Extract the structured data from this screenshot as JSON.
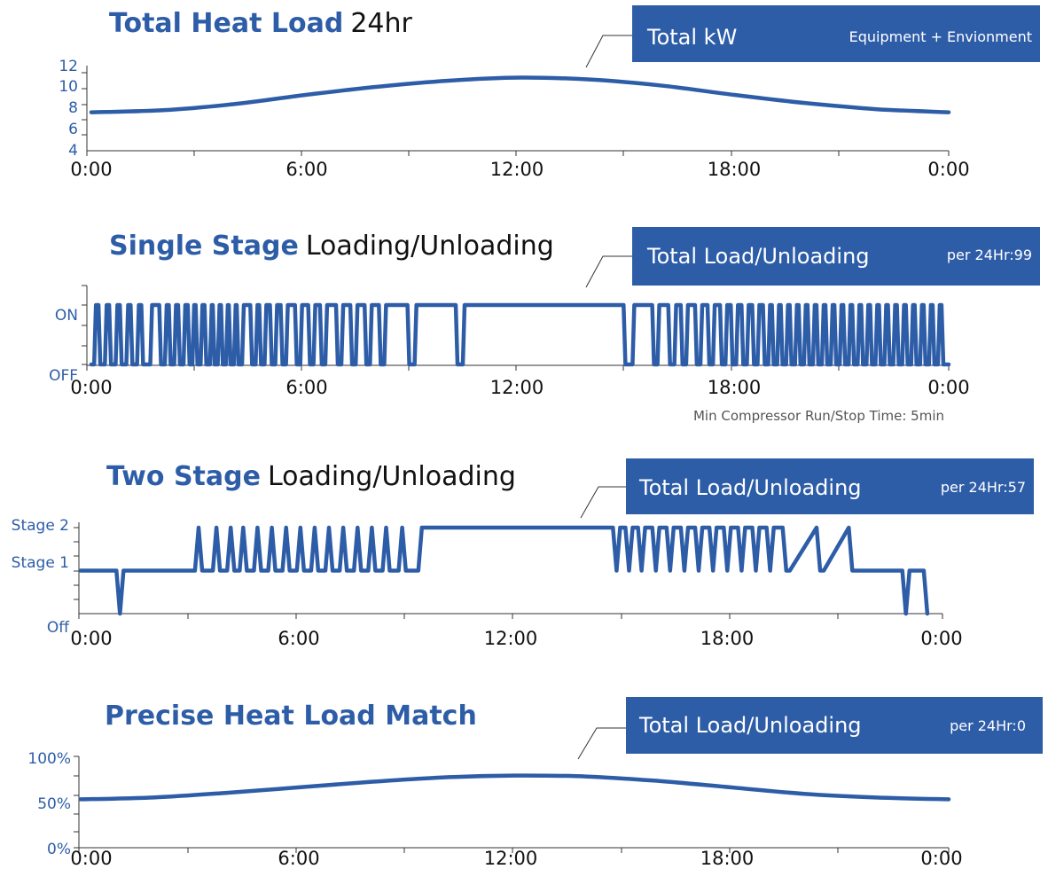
{
  "colors": {
    "accent": "#2e5da8",
    "axis": "#333333"
  },
  "charts": {
    "heat": {
      "title_bold": "Total Heat Load",
      "title_rest": "24hr",
      "callout_main": "Total kW",
      "callout_sub": "Equipment + Envionment"
    },
    "single": {
      "title_bold": "Single Stage",
      "title_rest": "Loading/Unloading",
      "callout_main": "Total Load/Unloading",
      "callout_sub": "per 24Hr:99",
      "note": "Min Compressor Run/Stop Time: 5min"
    },
    "two": {
      "title_bold": "Two Stage",
      "title_rest": "Loading/Unloading",
      "callout_main": "Total Load/Unloading",
      "callout_sub": "per 24Hr:57"
    },
    "precise": {
      "title_bold": "Precise Heat Load Match",
      "title_rest": "",
      "callout_main": "Total Load/Unloading",
      "callout_sub": "per 24Hr:0"
    }
  },
  "chart_data": [
    {
      "type": "line",
      "x_tick_labels": [
        "0:00",
        "6:00",
        "12:00",
        "18:00",
        "0:00"
      ],
      "x_range_hours": [
        0,
        24
      ],
      "y_tick_labels": [
        "12",
        "10",
        "8",
        "6",
        "4"
      ],
      "ylim": [
        4,
        12
      ],
      "series": [
        {
          "x": [
            0,
            2,
            4,
            6,
            8,
            10,
            12,
            14,
            16,
            18,
            20,
            22,
            24
          ],
          "values": [
            7.6,
            7.8,
            8.4,
            9.3,
            10.1,
            10.7,
            11.0,
            10.8,
            10.2,
            9.3,
            8.5,
            7.9,
            7.6
          ]
        }
      ]
    },
    {
      "type": "line",
      "x_tick_labels": [
        "0:00",
        "6:00",
        "12:00",
        "18:00",
        "0:00"
      ],
      "x_range_hours": [
        0,
        24
      ],
      "y_tick_labels": [
        "ON",
        "OFF"
      ],
      "ylim": [
        0,
        1
      ],
      "series": [
        {
          "on_periods_hours": [
            [
              0.08,
              0.25
            ],
            [
              0.38,
              0.55
            ],
            [
              0.68,
              0.85
            ],
            [
              0.98,
              1.15
            ],
            [
              1.28,
              1.45
            ],
            [
              1.65,
              1.95
            ],
            [
              2.06,
              2.22
            ],
            [
              2.32,
              2.48
            ],
            [
              2.58,
              2.75
            ],
            [
              2.83,
              2.97
            ],
            [
              3.06,
              3.22
            ],
            [
              3.32,
              3.45
            ],
            [
              3.54,
              3.68
            ],
            [
              3.77,
              3.9
            ],
            [
              3.99,
              4.12
            ],
            [
              4.22,
              4.5
            ],
            [
              4.6,
              4.75
            ],
            [
              4.85,
              5.05
            ],
            [
              5.15,
              5.35
            ],
            [
              5.45,
              5.75
            ],
            [
              5.85,
              6.12
            ],
            [
              6.22,
              6.45
            ],
            [
              6.55,
              6.9
            ],
            [
              7.0,
              7.3
            ],
            [
              7.4,
              7.7
            ],
            [
              7.8,
              8.1
            ],
            [
              8.2,
              8.9
            ],
            [
              9.05,
              10.25
            ],
            [
              10.4,
              14.95
            ],
            [
              15.15,
              15.75
            ],
            [
              15.85,
              16.2
            ],
            [
              16.32,
              16.55
            ],
            [
              16.65,
              16.95
            ],
            [
              17.05,
              17.3
            ],
            [
              17.4,
              17.65
            ],
            [
              17.75,
              17.95
            ],
            [
              18.05,
              18.25
            ],
            [
              18.35,
              18.55
            ],
            [
              18.65,
              18.85
            ],
            [
              18.95,
              19.1
            ],
            [
              19.2,
              19.35
            ],
            [
              19.45,
              19.6
            ],
            [
              19.7,
              19.85
            ],
            [
              19.95,
              20.1
            ],
            [
              20.2,
              20.35
            ],
            [
              20.45,
              20.6
            ],
            [
              20.7,
              20.85
            ],
            [
              20.95,
              21.1
            ],
            [
              21.2,
              21.35
            ],
            [
              21.45,
              21.6
            ],
            [
              21.7,
              21.85
            ],
            [
              21.95,
              22.1
            ],
            [
              22.2,
              22.35
            ],
            [
              22.45,
              22.6
            ],
            [
              22.7,
              22.85
            ],
            [
              22.95,
              23.1
            ],
            [
              23.2,
              23.35
            ],
            [
              23.45,
              23.6
            ],
            [
              23.7,
              23.85
            ]
          ]
        }
      ]
    },
    {
      "type": "line",
      "x_tick_labels": [
        "0:00",
        "6:00",
        "12:00",
        "18:00",
        "0:00"
      ],
      "x_range_hours": [
        0,
        24
      ],
      "y_tick_labels": [
        "Stage 2",
        "Stage 1",
        "Off"
      ],
      "ylim": [
        0,
        2
      ],
      "series": [
        {
          "x": [
            0,
            1.0,
            1.1,
            1.2,
            3.2,
            3.3,
            3.4,
            3.7,
            3.8,
            3.9,
            4.1,
            4.2,
            4.3,
            4.45,
            4.55,
            4.65,
            4.85,
            4.95,
            5.05,
            5.25,
            5.35,
            5.45,
            5.65,
            5.75,
            5.85,
            6.05,
            6.15,
            6.25,
            6.45,
            6.55,
            6.65,
            6.85,
            6.95,
            7.05,
            7.25,
            7.35,
            7.45,
            7.65,
            7.75,
            7.85,
            8.05,
            8.15,
            8.25,
            8.45,
            8.55,
            8.65,
            8.9,
            9.0,
            9.1,
            9.45,
            9.55,
            9.65,
            14.9,
            15.0,
            15.1,
            15.25,
            15.35,
            15.45,
            15.6,
            15.7,
            15.8,
            16.0,
            16.1,
            16.2,
            16.4,
            16.5,
            16.6,
            16.8,
            16.9,
            17.0,
            17.2,
            17.3,
            17.4,
            17.6,
            17.7,
            17.8,
            18.0,
            18.1,
            18.2,
            18.4,
            18.5,
            18.6,
            18.8,
            18.9,
            19.0,
            19.2,
            19.3,
            19.4,
            19.65,
            19.75,
            19.85,
            20.6,
            20.7,
            20.8,
            21.5,
            21.6,
            21.7,
            23.0,
            23.1,
            23.2,
            23.6,
            23.7
          ],
          "values": [
            1,
            1,
            0,
            1,
            1,
            2,
            1,
            1,
            2,
            1,
            1,
            2,
            1,
            1,
            2,
            1,
            1,
            2,
            1,
            1,
            2,
            1,
            1,
            2,
            1,
            1,
            2,
            1,
            1,
            2,
            1,
            1,
            2,
            1,
            1,
            2,
            1,
            1,
            2,
            1,
            1,
            2,
            1,
            1,
            2,
            1,
            1,
            2,
            1,
            1,
            2,
            2,
            2,
            1,
            2,
            2,
            1,
            2,
            2,
            1,
            2,
            2,
            1,
            2,
            2,
            1,
            2,
            2,
            1,
            2,
            2,
            1,
            2,
            2,
            1,
            2,
            2,
            1,
            2,
            2,
            1,
            2,
            2,
            1,
            2,
            2,
            1,
            2,
            2,
            1,
            1,
            2,
            1,
            1,
            2,
            1,
            1,
            1,
            0,
            1,
            1,
            0
          ]
        }
      ]
    },
    {
      "type": "line",
      "x_tick_labels": [
        "0:00",
        "6:00",
        "12:00",
        "18:00",
        "0:00"
      ],
      "x_range_hours": [
        0,
        24
      ],
      "y_tick_labels": [
        "100%",
        "50%",
        "0%"
      ],
      "ylim": [
        0,
        100
      ],
      "series": [
        {
          "x": [
            0,
            2,
            4,
            6,
            8,
            10,
            12,
            14,
            16,
            18,
            20,
            22,
            24
          ],
          "values": [
            53,
            55,
            60,
            66,
            72,
            77,
            79,
            78,
            73,
            66,
            59,
            55,
            53
          ]
        }
      ]
    }
  ]
}
